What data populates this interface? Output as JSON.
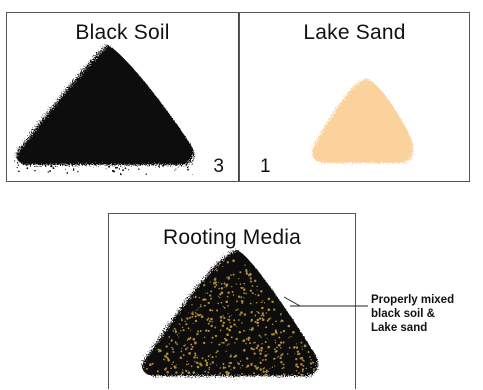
{
  "panels": {
    "black_soil": {
      "title": "Black Soil",
      "ratio": "3"
    },
    "lake_sand": {
      "title": "Lake Sand",
      "ratio": "1"
    },
    "rooting_media": {
      "title": "Rooting Media"
    }
  },
  "callout": {
    "line1": "Properly mixed",
    "line2": "black soil &",
    "line3": "Lake sand"
  },
  "colors": {
    "black_soil": "#0a0a0a",
    "lake_sand": "#fbd29b",
    "sand_speckle": "#b08a3c",
    "frame": "#555555"
  }
}
